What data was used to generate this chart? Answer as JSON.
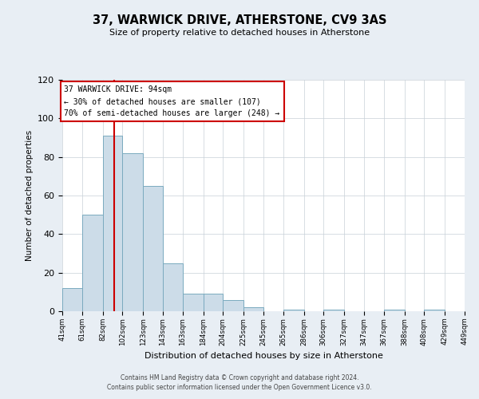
{
  "title": "37, WARWICK DRIVE, ATHERSTONE, CV9 3AS",
  "subtitle": "Size of property relative to detached houses in Atherstone",
  "xlabel": "Distribution of detached houses by size in Atherstone",
  "ylabel": "Number of detached properties",
  "bin_edges": [
    41,
    61,
    82,
    102,
    123,
    143,
    163,
    184,
    204,
    225,
    245,
    265,
    286,
    306,
    327,
    347,
    367,
    388,
    408,
    429,
    449
  ],
  "bar_heights": [
    12,
    50,
    91,
    82,
    65,
    25,
    9,
    9,
    6,
    2,
    0,
    1,
    0,
    1,
    0,
    0,
    1,
    0,
    1,
    0
  ],
  "bar_color": "#ccdce8",
  "bar_edge_color": "#7aaabf",
  "vline_x": 94,
  "vline_color": "#cc0000",
  "annotation_title": "37 WARWICK DRIVE: 94sqm",
  "annotation_line1": "← 30% of detached houses are smaller (107)",
  "annotation_line2": "70% of semi-detached houses are larger (248) →",
  "annotation_box_color": "#cc0000",
  "ylim": [
    0,
    120
  ],
  "yticks": [
    0,
    20,
    40,
    60,
    80,
    100,
    120
  ],
  "tick_labels": [
    "41sqm",
    "61sqm",
    "82sqm",
    "102sqm",
    "123sqm",
    "143sqm",
    "163sqm",
    "184sqm",
    "204sqm",
    "225sqm",
    "245sqm",
    "265sqm",
    "286sqm",
    "306sqm",
    "327sqm",
    "347sqm",
    "367sqm",
    "388sqm",
    "408sqm",
    "429sqm",
    "449sqm"
  ],
  "footer_line1": "Contains HM Land Registry data © Crown copyright and database right 2024.",
  "footer_line2": "Contains public sector information licensed under the Open Government Licence v3.0.",
  "background_color": "#e8eef4",
  "plot_background_color": "#ffffff",
  "grid_color": "#c8d0d8"
}
